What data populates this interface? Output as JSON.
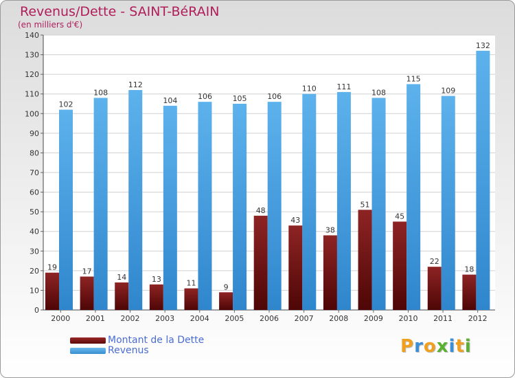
{
  "title": "Revenus/Dette - SAINT-BéRAIN",
  "subtitle": "(en milliers d'€)",
  "colors": {
    "accent": "#b01e5a",
    "debt": "#7a1010",
    "revenue": "#4fa6e4",
    "legend_text": "#4a6cd4"
  },
  "chart_data": {
    "type": "bar",
    "title": "Revenus/Dette - SAINT-BéRAIN",
    "ylabel": "(en milliers d'€)",
    "xlabel": "",
    "ylim": [
      0,
      140
    ],
    "yticks": [
      0,
      10,
      20,
      30,
      40,
      50,
      60,
      70,
      80,
      90,
      100,
      110,
      120,
      130,
      140
    ],
    "grid": true,
    "categories": [
      "2000",
      "2001",
      "2002",
      "2003",
      "2004",
      "2005",
      "2006",
      "2007",
      "2008",
      "2009",
      "2010",
      "2011",
      "2012"
    ],
    "series": [
      {
        "name": "Montant de la Dette",
        "color": "#7a1010",
        "values": [
          19,
          17,
          14,
          13,
          11,
          9,
          48,
          43,
          38,
          51,
          45,
          22,
          18
        ]
      },
      {
        "name": "Revenus",
        "color": "#4fa6e4",
        "values": [
          102,
          108,
          112,
          104,
          106,
          105,
          106,
          110,
          111,
          108,
          115,
          109,
          132
        ]
      }
    ]
  },
  "legend": [
    {
      "label": "Montant de la Dette",
      "color": "#7a1010"
    },
    {
      "label": "Revenus",
      "color": "#4fa6e4"
    }
  ],
  "logo": {
    "text": "Proxiti",
    "letters": [
      "P",
      "r",
      "o",
      "x",
      "i",
      "t",
      "i"
    ],
    "letter_colors": [
      "#f0a020",
      "#3a8fd8",
      "#f0a020",
      "#5ab030",
      "#3a8fd8",
      "#f0a020",
      "#5ab030"
    ]
  }
}
